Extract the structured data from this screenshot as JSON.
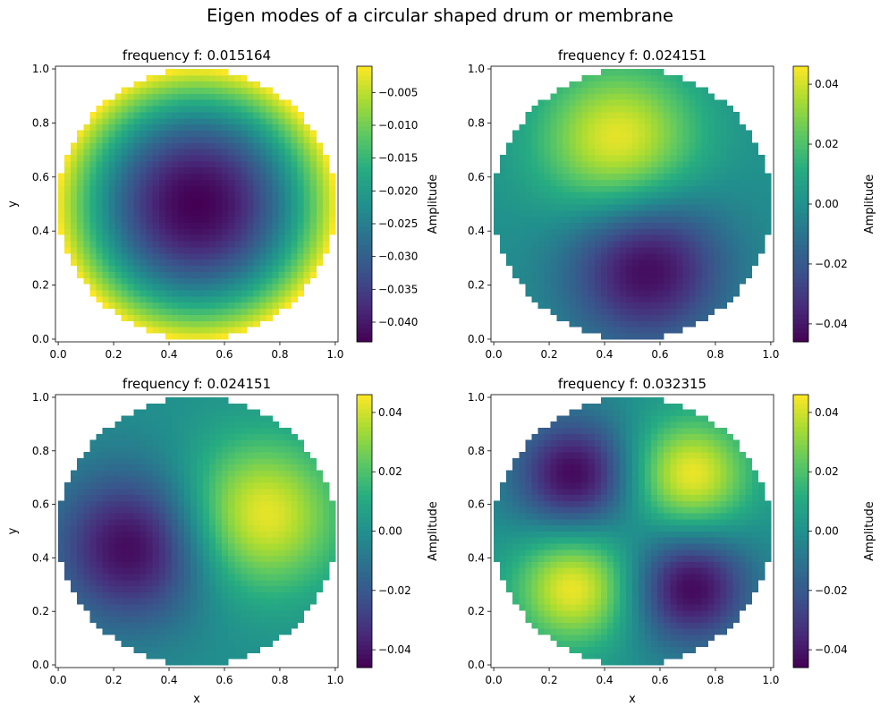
{
  "figure": {
    "suptitle": "Eigen modes of a circular shaped drum or membrane"
  },
  "chart_data": [
    {
      "type": "heatmap",
      "title": "frequency f: 0.015164",
      "xlabel": "",
      "ylabel": "y",
      "xlim": [
        0.0,
        1.0
      ],
      "ylim": [
        0.0,
        1.0
      ],
      "x_ticks": [
        "0.0",
        "0.2",
        "0.4",
        "0.6",
        "0.8",
        "1.0"
      ],
      "y_ticks": [
        "0.0",
        "0.2",
        "0.4",
        "0.6",
        "0.8",
        "1.0"
      ],
      "mode": "radial",
      "extrema": [
        {
          "x": 0.5,
          "y": 0.5,
          "value": -0.043
        }
      ],
      "boundary_value": -0.001,
      "colorbar": {
        "label": "Amplitude",
        "colormap": "viridis",
        "range": [
          -0.043,
          -0.001
        ],
        "ticks": [
          "-0.040",
          "-0.035",
          "-0.030",
          "-0.025",
          "-0.020",
          "-0.015",
          "-0.010",
          "-0.005"
        ],
        "tick_values": [
          -0.04,
          -0.035,
          -0.03,
          -0.025,
          -0.02,
          -0.015,
          -0.01,
          -0.005
        ]
      }
    },
    {
      "type": "heatmap",
      "title": "frequency f: 0.024151",
      "xlabel": "",
      "ylabel": "",
      "xlim": [
        0.0,
        1.0
      ],
      "ylim": [
        0.0,
        1.0
      ],
      "x_ticks": [
        "0.0",
        "0.2",
        "0.4",
        "0.6",
        "0.8",
        "1.0"
      ],
      "y_ticks": [
        "0.0",
        "0.2",
        "0.4",
        "0.6",
        "0.8",
        "1.0"
      ],
      "mode": "dipole",
      "extrema": [
        {
          "x": 0.45,
          "y": 0.73,
          "value": 0.045
        },
        {
          "x": 0.55,
          "y": 0.27,
          "value": -0.045
        }
      ],
      "colorbar": {
        "label": "Amplitude",
        "colormap": "viridis",
        "range": [
          -0.046,
          0.046
        ],
        "ticks": [
          "-0.04",
          "-0.02",
          "0.00",
          "0.02",
          "0.04"
        ],
        "tick_values": [
          -0.04,
          -0.02,
          0.0,
          0.02,
          0.04
        ]
      }
    },
    {
      "type": "heatmap",
      "title": "frequency f: 0.024151",
      "xlabel": "x",
      "ylabel": "y",
      "xlim": [
        0.0,
        1.0
      ],
      "ylim": [
        0.0,
        1.0
      ],
      "x_ticks": [
        "0.0",
        "0.2",
        "0.4",
        "0.6",
        "0.8",
        "1.0"
      ],
      "y_ticks": [
        "0.0",
        "0.2",
        "0.4",
        "0.6",
        "0.8",
        "1.0"
      ],
      "mode": "dipole",
      "extrema": [
        {
          "x": 0.73,
          "y": 0.56,
          "value": 0.045
        },
        {
          "x": 0.27,
          "y": 0.44,
          "value": -0.045
        }
      ],
      "colorbar": {
        "label": "Amplitude",
        "colormap": "viridis",
        "range": [
          -0.046,
          0.046
        ],
        "ticks": [
          "-0.04",
          "-0.02",
          "0.00",
          "0.02",
          "0.04"
        ],
        "tick_values": [
          -0.04,
          -0.02,
          0.0,
          0.02,
          0.04
        ]
      }
    },
    {
      "type": "heatmap",
      "title": "frequency f: 0.032315",
      "xlabel": "x",
      "ylabel": "",
      "xlim": [
        0.0,
        1.0
      ],
      "ylim": [
        0.0,
        1.0
      ],
      "x_ticks": [
        "0.0",
        "0.2",
        "0.4",
        "0.6",
        "0.8",
        "1.0"
      ],
      "y_ticks": [
        "0.0",
        "0.2",
        "0.4",
        "0.6",
        "0.8",
        "1.0"
      ],
      "mode": "quadrupole",
      "extrema": [
        {
          "x": 0.71,
          "y": 0.71,
          "value": 0.045
        },
        {
          "x": 0.29,
          "y": 0.29,
          "value": 0.045
        },
        {
          "x": 0.29,
          "y": 0.71,
          "value": -0.045
        },
        {
          "x": 0.71,
          "y": 0.29,
          "value": -0.045
        }
      ],
      "colorbar": {
        "label": "Amplitude",
        "colormap": "viridis",
        "range": [
          -0.046,
          0.046
        ],
        "ticks": [
          "-0.04",
          "-0.02",
          "0.00",
          "0.02",
          "0.04"
        ],
        "tick_values": [
          -0.04,
          -0.02,
          0.0,
          0.02,
          0.04
        ]
      }
    }
  ]
}
